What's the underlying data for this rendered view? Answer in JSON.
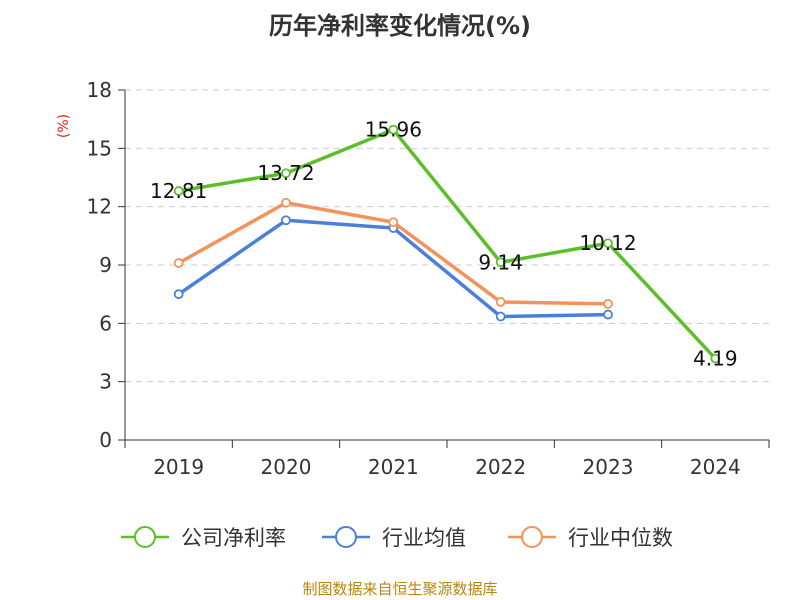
{
  "chart_data": {
    "type": "line",
    "title": "历年净利率变化情况(%)",
    "ylabel": "(%)",
    "categories": [
      "2019",
      "2020",
      "2021",
      "2022",
      "2023",
      "2024"
    ],
    "ylim": [
      0,
      18
    ],
    "yticks": [
      0,
      3,
      6,
      9,
      12,
      15,
      18
    ],
    "grid": true,
    "legend_position": "bottom",
    "series": [
      {
        "name": "公司净利率",
        "color": "#5cbf2a",
        "show_labels": true,
        "labels": [
          "12.81",
          "13.72",
          "15.96",
          "9.14",
          "10.12",
          "4.19"
        ],
        "values": [
          12.81,
          13.72,
          15.96,
          9.14,
          10.12,
          4.19
        ]
      },
      {
        "name": "行业均值",
        "color": "#4a7fdc",
        "show_labels": false,
        "values": [
          7.5,
          11.3,
          10.9,
          6.35,
          6.45,
          null
        ]
      },
      {
        "name": "行业中位数",
        "color": "#f4925c",
        "show_labels": false,
        "values": [
          9.1,
          12.2,
          11.2,
          7.1,
          7.0,
          null
        ]
      }
    ]
  },
  "source": "制图数据来自恒生聚源数据库"
}
